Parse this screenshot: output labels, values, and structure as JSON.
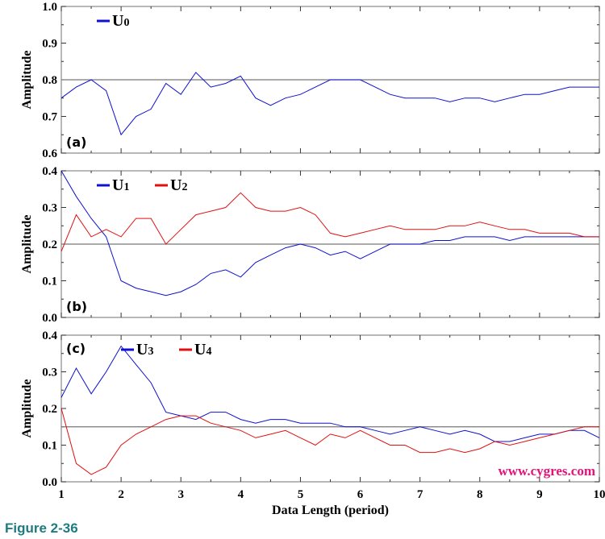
{
  "figure_label": "Figure 2-36",
  "watermark": "www.cygres.com",
  "chart_data": [
    {
      "type": "line",
      "panel": "(a)",
      "ylabel": "Amplitude",
      "xlabel": "Data Length (period)",
      "xlim": [
        1,
        10
      ],
      "ylim": [
        0.6,
        1.0
      ],
      "yticks": [
        "0.6",
        "0.7",
        "0.8",
        "0.9",
        "1.0"
      ],
      "reference_line": 0.8,
      "x": [
        1,
        1.25,
        1.5,
        1.75,
        2,
        2.25,
        2.5,
        2.75,
        3,
        3.25,
        3.5,
        3.75,
        4,
        4.25,
        4.5,
        4.75,
        5,
        5.25,
        5.5,
        5.75,
        6,
        6.25,
        6.5,
        6.75,
        7,
        7.25,
        7.5,
        7.75,
        8,
        8.25,
        8.5,
        8.75,
        9,
        9.25,
        9.5,
        9.75,
        10
      ],
      "series": [
        {
          "name": "U",
          "sub": "0",
          "color": "#1010d0",
          "values": [
            0.75,
            0.78,
            0.8,
            0.77,
            0.65,
            0.7,
            0.72,
            0.79,
            0.76,
            0.82,
            0.78,
            0.79,
            0.81,
            0.75,
            0.73,
            0.75,
            0.76,
            0.78,
            0.8,
            0.8,
            0.8,
            0.78,
            0.76,
            0.75,
            0.75,
            0.75,
            0.74,
            0.75,
            0.75,
            0.74,
            0.75,
            0.76,
            0.76,
            0.77,
            0.78,
            0.78,
            0.78
          ]
        }
      ]
    },
    {
      "type": "line",
      "panel": "(b)",
      "ylabel": "Amplitude",
      "xlim": [
        1,
        10
      ],
      "ylim": [
        0.0,
        0.4
      ],
      "yticks": [
        "0.0",
        "0.1",
        "0.2",
        "0.3",
        "0.4"
      ],
      "reference_line": 0.2,
      "x": [
        1,
        1.25,
        1.5,
        1.75,
        2,
        2.25,
        2.5,
        2.75,
        3,
        3.25,
        3.5,
        3.75,
        4,
        4.25,
        4.5,
        4.75,
        5,
        5.25,
        5.5,
        5.75,
        6,
        6.25,
        6.5,
        6.75,
        7,
        7.25,
        7.5,
        7.75,
        8,
        8.25,
        8.5,
        8.75,
        9,
        9.25,
        9.5,
        9.75,
        10
      ],
      "series": [
        {
          "name": "U",
          "sub": "1",
          "color": "#1010d0",
          "values": [
            0.4,
            0.33,
            0.27,
            0.22,
            0.1,
            0.08,
            0.07,
            0.06,
            0.07,
            0.09,
            0.12,
            0.13,
            0.11,
            0.15,
            0.17,
            0.19,
            0.2,
            0.19,
            0.17,
            0.18,
            0.16,
            0.18,
            0.2,
            0.2,
            0.2,
            0.21,
            0.21,
            0.22,
            0.22,
            0.22,
            0.21,
            0.22,
            0.22,
            0.22,
            0.22,
            0.22,
            0.22
          ]
        },
        {
          "name": "U",
          "sub": "2",
          "color": "#e01010",
          "values": [
            0.18,
            0.28,
            0.22,
            0.24,
            0.22,
            0.27,
            0.27,
            0.2,
            0.24,
            0.28,
            0.29,
            0.3,
            0.34,
            0.3,
            0.29,
            0.29,
            0.3,
            0.28,
            0.23,
            0.22,
            0.23,
            0.24,
            0.25,
            0.24,
            0.24,
            0.24,
            0.25,
            0.25,
            0.26,
            0.25,
            0.24,
            0.24,
            0.23,
            0.23,
            0.23,
            0.22,
            0.22
          ]
        }
      ]
    },
    {
      "type": "line",
      "panel": "(c)",
      "ylabel": "Amplitude",
      "xlabel": "Data Length (period)",
      "xlim": [
        1,
        10
      ],
      "ylim": [
        0.0,
        0.4
      ],
      "xticks": [
        "1",
        "2",
        "3",
        "4",
        "5",
        "6",
        "7",
        "8",
        "9",
        "10"
      ],
      "yticks": [
        "0.0",
        "0.1",
        "0.2",
        "0.3",
        "0.4"
      ],
      "reference_line": 0.15,
      "x": [
        1,
        1.25,
        1.5,
        1.75,
        2,
        2.25,
        2.5,
        2.75,
        3,
        3.25,
        3.5,
        3.75,
        4,
        4.25,
        4.5,
        4.75,
        5,
        5.25,
        5.5,
        5.75,
        6,
        6.25,
        6.5,
        6.75,
        7,
        7.25,
        7.5,
        7.75,
        8,
        8.25,
        8.5,
        8.75,
        9,
        9.25,
        9.5,
        9.75,
        10
      ],
      "series": [
        {
          "name": "U",
          "sub": "3",
          "color": "#1010d0",
          "values": [
            0.23,
            0.31,
            0.24,
            0.3,
            0.37,
            0.32,
            0.27,
            0.19,
            0.18,
            0.17,
            0.19,
            0.19,
            0.17,
            0.16,
            0.17,
            0.17,
            0.16,
            0.16,
            0.16,
            0.15,
            0.15,
            0.14,
            0.13,
            0.14,
            0.15,
            0.14,
            0.13,
            0.14,
            0.13,
            0.11,
            0.11,
            0.12,
            0.13,
            0.13,
            0.14,
            0.14,
            0.12
          ]
        },
        {
          "name": "U",
          "sub": "4",
          "color": "#e01010",
          "values": [
            0.2,
            0.05,
            0.02,
            0.04,
            0.1,
            0.13,
            0.15,
            0.17,
            0.18,
            0.18,
            0.16,
            0.15,
            0.14,
            0.12,
            0.13,
            0.14,
            0.12,
            0.1,
            0.13,
            0.12,
            0.14,
            0.12,
            0.1,
            0.1,
            0.08,
            0.08,
            0.09,
            0.08,
            0.09,
            0.11,
            0.1,
            0.11,
            0.12,
            0.13,
            0.14,
            0.15,
            0.15
          ]
        }
      ]
    }
  ]
}
